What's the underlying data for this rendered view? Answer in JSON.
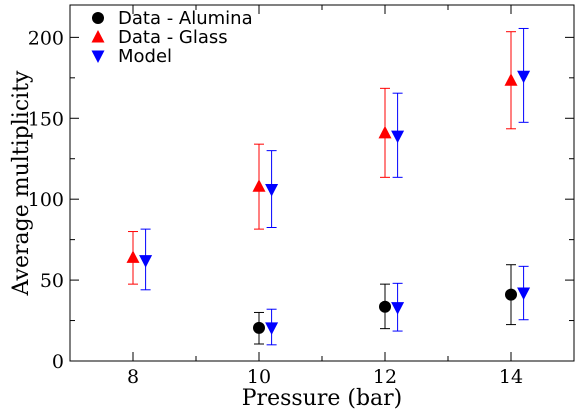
{
  "chart_data": {
    "type": "scatter",
    "title": "",
    "xlabel": "Pressure (bar)",
    "ylabel": "Average multiplicity",
    "xlim": [
      7,
      15
    ],
    "ylim": [
      0,
      220
    ],
    "x_ticks": [
      8,
      10,
      12,
      14
    ],
    "x_minor_ticks": [
      7,
      9,
      11,
      13,
      15
    ],
    "y_ticks": [
      0,
      50,
      100,
      150,
      200
    ],
    "y_minor_ticks": [
      25,
      75,
      125,
      175
    ],
    "grid": false,
    "legend_position": "top-left",
    "series": [
      {
        "name": "Data - Alumina",
        "marker": "circle",
        "color": "#000000",
        "points": [
          {
            "x": 10,
            "y": 20.5,
            "err_low": 10.5,
            "err_high": 30
          },
          {
            "x": 12,
            "y": 33.5,
            "err_low": 20,
            "err_high": 47.5
          },
          {
            "x": 14,
            "y": 41,
            "err_low": 22.5,
            "err_high": 59.5
          }
        ]
      },
      {
        "name": "Data - Glass",
        "marker": "triangle-up",
        "color": "#ff0000",
        "points": [
          {
            "x": 8,
            "y": 64,
            "err_low": 47.5,
            "err_high": 80
          },
          {
            "x": 10,
            "y": 108,
            "err_low": 81.5,
            "err_high": 134
          },
          {
            "x": 12,
            "y": 141,
            "err_low": 113.5,
            "err_high": 168.5
          },
          {
            "x": 14,
            "y": 173.5,
            "err_low": 143.5,
            "err_high": 203.5
          }
        ]
      },
      {
        "name": "Model",
        "marker": "triangle-down",
        "color": "#0000ff",
        "points": [
          {
            "x": 8.2,
            "y": 62,
            "err_low": 44,
            "err_high": 81.5
          },
          {
            "x": 10.2,
            "y": 106,
            "err_low": 82.5,
            "err_high": 130
          },
          {
            "x": 12.2,
            "y": 139,
            "err_low": 113.5,
            "err_high": 165.5
          },
          {
            "x": 14.2,
            "y": 176,
            "err_low": 147.5,
            "err_high": 205.5
          },
          {
            "x": 10.2,
            "y": 20.5,
            "err_low": 10,
            "err_high": 32
          },
          {
            "x": 12.2,
            "y": 33,
            "err_low": 18.5,
            "err_high": 48
          },
          {
            "x": 14.2,
            "y": 42,
            "err_low": 25.5,
            "err_high": 58.5
          }
        ]
      }
    ]
  }
}
